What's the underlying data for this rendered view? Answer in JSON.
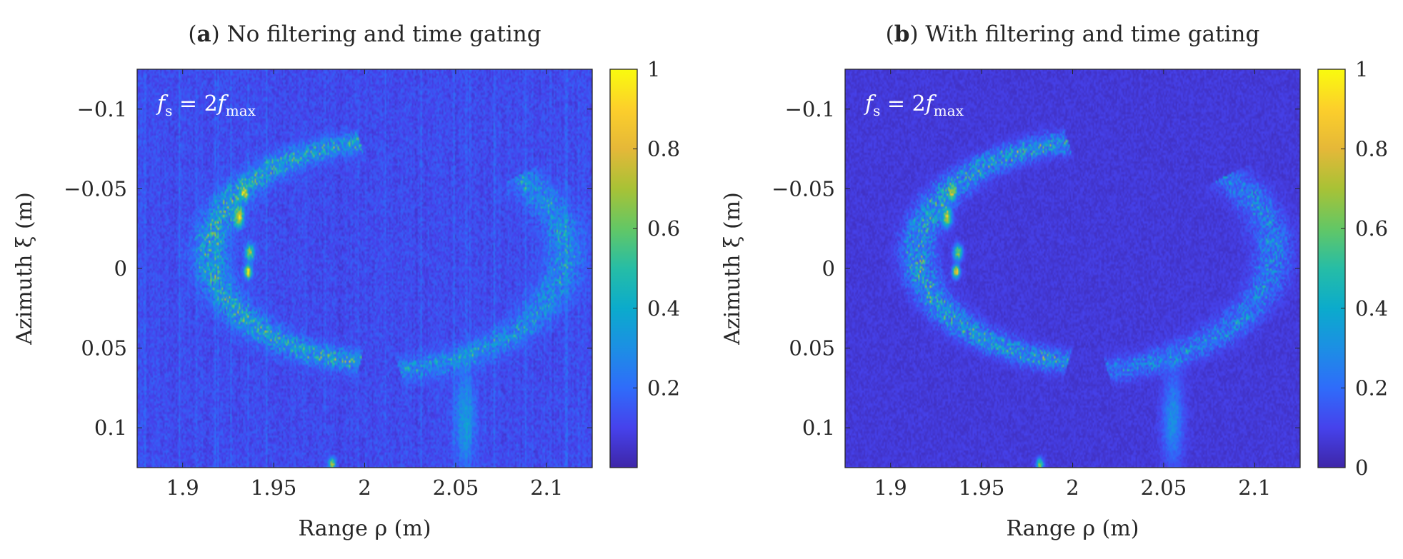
{
  "chart_data": [
    {
      "type": "heatmap",
      "panel_label": "a",
      "title": "No filtering and time gating",
      "xlabel": "Range ρ (m)",
      "ylabel": "Azimuth ξ (m)",
      "xlim": [
        1.875,
        2.125
      ],
      "ylim": [
        -0.125,
        0.125
      ],
      "y_reversed": true,
      "xticks": [
        1.9,
        1.95,
        2.0,
        2.05,
        2.1
      ],
      "xtick_labels": [
        "1.9",
        "1.95",
        "2",
        "2.05",
        "2.1"
      ],
      "yticks": [
        -0.1,
        -0.05,
        0,
        0.05,
        0.1
      ],
      "ytick_labels": [
        "−0.1",
        "−0.05",
        "0",
        "0.05",
        "0.1"
      ],
      "annotation": {
        "var": "f",
        "sub": "s",
        "eq": " = 2",
        "var2": "f",
        "sub2": "max"
      },
      "colorbar": {
        "range": [
          0,
          1
        ],
        "ticks": [
          0.2,
          0.4,
          0.6,
          0.8,
          1
        ],
        "tick_labels": [
          "0.2",
          "0.4",
          "0.6",
          "0.8",
          "1"
        ]
      },
      "background_level": 0.12,
      "vertical_striping": true,
      "features": [
        {
          "name": "left-arc",
          "kind": "arc",
          "center": [
            2.015,
            -0.01
          ],
          "radius_x": 0.1,
          "radius_y": 0.07,
          "from_deg": 100,
          "to_deg": 260,
          "intensity": 0.28
        },
        {
          "name": "right-arc",
          "kind": "arc",
          "center": [
            2.0,
            -0.01
          ],
          "radius_x": 0.11,
          "radius_y": 0.075,
          "from_deg": -80,
          "to_deg": 40,
          "intensity": 0.2
        },
        {
          "name": "lower-structure",
          "kind": "blob",
          "center": [
            2.055,
            0.095
          ],
          "radius_x": 0.006,
          "radius_y": 0.03,
          "intensity": 0.22
        },
        {
          "name": "bottom-spot",
          "kind": "blob",
          "center": [
            1.982,
            0.123
          ],
          "radius_x": 0.002,
          "radius_y": 0.004,
          "intensity": 0.6
        },
        {
          "name": "peak-1",
          "kind": "blob",
          "center": [
            1.931,
            -0.032
          ],
          "radius_x": 0.0025,
          "radius_y": 0.006,
          "intensity": 0.72
        },
        {
          "name": "peak-2",
          "kind": "blob",
          "center": [
            1.937,
            -0.01
          ],
          "radius_x": 0.0025,
          "radius_y": 0.005,
          "intensity": 0.62
        },
        {
          "name": "peak-3",
          "kind": "blob",
          "center": [
            1.936,
            0.002
          ],
          "radius_x": 0.002,
          "radius_y": 0.004,
          "intensity": 0.85
        },
        {
          "name": "peak-4",
          "kind": "blob",
          "center": [
            1.934,
            -0.048
          ],
          "radius_x": 0.002,
          "radius_y": 0.004,
          "intensity": 0.55
        }
      ]
    },
    {
      "type": "heatmap",
      "panel_label": "b",
      "title": "With filtering and time gating",
      "xlabel": "Range ρ (m)",
      "ylabel": "Azimuth ξ (m)",
      "xlim": [
        1.875,
        2.125
      ],
      "ylim": [
        -0.125,
        0.125
      ],
      "y_reversed": true,
      "xticks": [
        1.9,
        1.95,
        2.0,
        2.05,
        2.1
      ],
      "xtick_labels": [
        "1.9",
        "1.95",
        "2",
        "2.05",
        "2.1"
      ],
      "yticks": [
        -0.1,
        -0.05,
        0,
        0.05,
        0.1
      ],
      "ytick_labels": [
        "−0.1",
        "−0.05",
        "0",
        "0.05",
        "0.1"
      ],
      "annotation": {
        "var": "f",
        "sub": "s",
        "eq": " = 2",
        "var2": "f",
        "sub2": "max"
      },
      "colorbar": {
        "range": [
          0,
          1
        ],
        "ticks": [
          0,
          0.2,
          0.4,
          0.6,
          0.8,
          1
        ],
        "tick_labels": [
          "0",
          "0.2",
          "0.4",
          "0.6",
          "0.8",
          "1"
        ]
      },
      "background_level": 0.07,
      "vertical_striping": false,
      "features": [
        {
          "name": "left-arc",
          "kind": "arc",
          "center": [
            2.015,
            -0.01
          ],
          "radius_x": 0.1,
          "radius_y": 0.07,
          "from_deg": 100,
          "to_deg": 260,
          "intensity": 0.3
        },
        {
          "name": "right-arc",
          "kind": "arc",
          "center": [
            2.0,
            -0.01
          ],
          "radius_x": 0.11,
          "radius_y": 0.075,
          "from_deg": -80,
          "to_deg": 40,
          "intensity": 0.2
        },
        {
          "name": "lower-structure",
          "kind": "blob",
          "center": [
            2.055,
            0.095
          ],
          "radius_x": 0.006,
          "radius_y": 0.03,
          "intensity": 0.24
        },
        {
          "name": "bottom-spot",
          "kind": "blob",
          "center": [
            1.982,
            0.123
          ],
          "radius_x": 0.002,
          "radius_y": 0.004,
          "intensity": 0.6
        },
        {
          "name": "peak-1",
          "kind": "blob",
          "center": [
            1.931,
            -0.032
          ],
          "radius_x": 0.0025,
          "radius_y": 0.006,
          "intensity": 0.72
        },
        {
          "name": "peak-2",
          "kind": "blob",
          "center": [
            1.937,
            -0.01
          ],
          "radius_x": 0.0025,
          "radius_y": 0.005,
          "intensity": 0.64
        },
        {
          "name": "peak-3",
          "kind": "blob",
          "center": [
            1.936,
            0.002
          ],
          "radius_x": 0.002,
          "radius_y": 0.004,
          "intensity": 0.88
        },
        {
          "name": "peak-4",
          "kind": "blob",
          "center": [
            1.934,
            -0.048
          ],
          "radius_x": 0.002,
          "radius_y": 0.004,
          "intensity": 0.55
        }
      ]
    }
  ]
}
